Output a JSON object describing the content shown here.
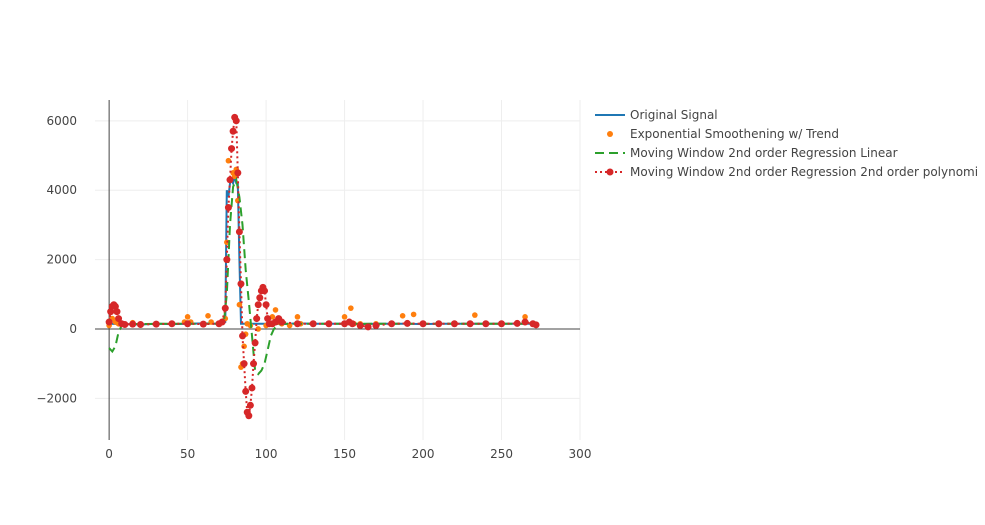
{
  "chart_data": {
    "type": "line",
    "x_ticks": [
      "0",
      "50",
      "100",
      "150",
      "200",
      "250",
      "300"
    ],
    "y_ticks": [
      "−2000",
      "0",
      "2000",
      "4000",
      "6000"
    ],
    "xlim": [
      -9,
      300
    ],
    "ylim": [
      -3200,
      6600
    ],
    "grid": true,
    "legend_position": "right",
    "series": [
      {
        "name": "Original Signal",
        "style": "solid",
        "color": "#1f77b4",
        "x": [
          0,
          10,
          20,
          30,
          40,
          50,
          60,
          70,
          74,
          75,
          76,
          77,
          78,
          79,
          80,
          81,
          82,
          83,
          84,
          90,
          100,
          110,
          120,
          130,
          140,
          150,
          160,
          170,
          180,
          190,
          200,
          210,
          220,
          230,
          240,
          250,
          260,
          270,
          272
        ],
        "y": [
          150,
          140,
          130,
          150,
          140,
          150,
          160,
          150,
          200,
          4000,
          3800,
          4200,
          4300,
          4200,
          4400,
          4200,
          4200,
          2000,
          150,
          150,
          150,
          140,
          160,
          150,
          150,
          150,
          140,
          150,
          150,
          150,
          140,
          150,
          150,
          150,
          150,
          150,
          150,
          150,
          150
        ]
      },
      {
        "name": "Exponential Smoothening w/ Trend",
        "style": "markers",
        "color": "#ff7f0e",
        "x": [
          0,
          2,
          4,
          6,
          10,
          15,
          20,
          30,
          40,
          48,
          50,
          52,
          60,
          63,
          65,
          70,
          74,
          75,
          76,
          77,
          78,
          79,
          80,
          81,
          82,
          83,
          84,
          85,
          86,
          87,
          88,
          90,
          95,
          100,
          104,
          106,
          108,
          110,
          115,
          120,
          122,
          130,
          140,
          150,
          154,
          156,
          160,
          170,
          180,
          187,
          190,
          194,
          200,
          210,
          220,
          233,
          240,
          250,
          260,
          265,
          270
        ],
        "y": [
          100,
          300,
          200,
          150,
          120,
          180,
          140,
          130,
          150,
          200,
          350,
          200,
          150,
          380,
          200,
          150,
          300,
          2500,
          4850,
          4300,
          5200,
          4500,
          4400,
          4600,
          3700,
          700,
          -1100,
          -1000,
          -500,
          -150,
          150,
          100,
          0,
          100,
          350,
          550,
          200,
          150,
          100,
          350,
          150,
          150,
          150,
          350,
          600,
          150,
          150,
          150,
          140,
          380,
          150,
          420,
          150,
          150,
          140,
          400,
          150,
          150,
          150,
          350,
          150
        ]
      },
      {
        "name": "Moving Window 2nd order Regression Linear",
        "style": "dash",
        "color": "#2ca02c",
        "x": [
          0,
          2,
          4,
          6,
          8,
          10,
          20,
          30,
          40,
          50,
          60,
          70,
          73,
          75,
          77,
          79,
          81,
          83,
          85,
          87,
          89,
          91,
          93,
          95,
          97,
          99,
          101,
          103,
          105,
          107,
          110,
          120,
          130,
          140,
          150,
          160,
          170,
          180,
          190,
          200,
          210,
          220,
          230,
          240,
          250,
          260,
          270,
          272
        ],
        "y": [
          -550,
          -650,
          -500,
          -100,
          100,
          150,
          140,
          150,
          150,
          150,
          150,
          150,
          150,
          1000,
          3000,
          4100,
          4300,
          3800,
          3000,
          1700,
          800,
          -200,
          -1200,
          -1300,
          -1200,
          -1000,
          -600,
          -200,
          0,
          100,
          150,
          150,
          150,
          150,
          150,
          150,
          150,
          150,
          150,
          150,
          150,
          150,
          150,
          150,
          150,
          150,
          150,
          150
        ]
      },
      {
        "name": "Moving Window 2nd order Regression 2nd order polynomi",
        "style": "dot-markers",
        "color": "#d62728",
        "x": [
          0,
          1,
          2,
          3,
          4,
          5,
          6,
          8,
          10,
          15,
          20,
          30,
          40,
          50,
          60,
          70,
          72,
          74,
          75,
          76,
          77,
          78,
          79,
          80,
          81,
          82,
          83,
          84,
          85,
          86,
          87,
          88,
          89,
          90,
          91,
          92,
          93,
          94,
          95,
          96,
          97,
          98,
          99,
          100,
          101,
          102,
          104,
          106,
          108,
          110,
          120,
          130,
          140,
          150,
          153,
          155,
          160,
          165,
          170,
          180,
          190,
          200,
          210,
          220,
          230,
          240,
          250,
          260,
          265,
          270,
          272
        ],
        "y": [
          200,
          500,
          650,
          700,
          650,
          500,
          300,
          150,
          130,
          140,
          130,
          140,
          150,
          150,
          140,
          150,
          200,
          600,
          2000,
          3500,
          4300,
          5200,
          5700,
          6100,
          6000,
          4500,
          2800,
          1300,
          -200,
          -1000,
          -1800,
          -2400,
          -2500,
          -2200,
          -1700,
          -1000,
          -400,
          300,
          700,
          900,
          1100,
          1200,
          1100,
          700,
          300,
          150,
          150,
          200,
          300,
          200,
          150,
          150,
          150,
          150,
          200,
          150,
          100,
          60,
          100,
          150,
          160,
          150,
          150,
          150,
          150,
          150,
          150,
          160,
          200,
          150,
          120
        ]
      }
    ]
  }
}
